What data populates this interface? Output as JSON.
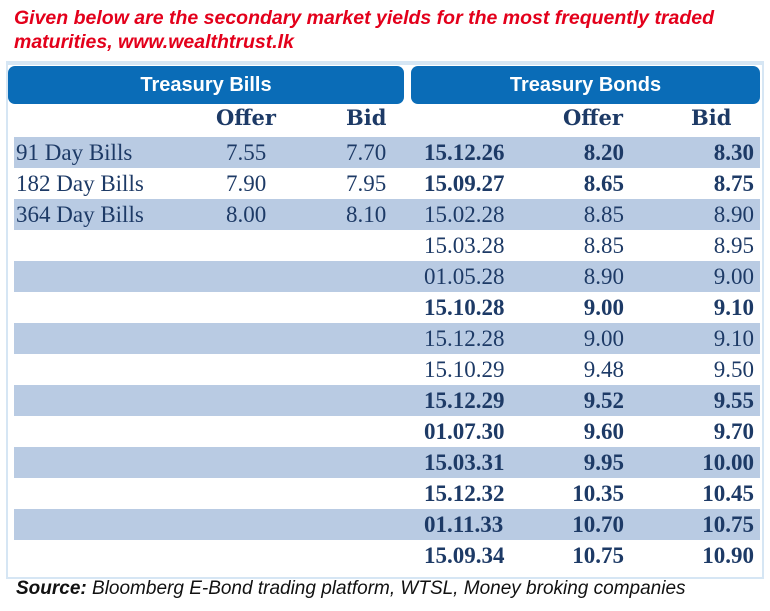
{
  "title": "Given below are the secondary market yields for the most frequently traded maturities, www.wealthtrust.lk",
  "bills": {
    "heading": "Treasury Bills",
    "columns": [
      "Offer",
      "Bid"
    ],
    "rows": [
      {
        "name": "91 Day Bills",
        "offer": "7.55",
        "bid": "7.70"
      },
      {
        "name": "182 Day Bills",
        "offer": "7.90",
        "bid": "7.95"
      },
      {
        "name": "364 Day Bills",
        "offer": "8.00",
        "bid": "8.10"
      }
    ]
  },
  "bonds": {
    "heading": "Treasury Bonds",
    "columns": [
      "Offer",
      "Bid"
    ],
    "rows": [
      {
        "maturity": "15.12.26",
        "offer": "8.20",
        "bid": "8.30",
        "bold": true
      },
      {
        "maturity": "15.09.27",
        "offer": "8.65",
        "bid": "8.75",
        "bold": true
      },
      {
        "maturity": "15.02.28",
        "offer": "8.85",
        "bid": "8.90",
        "bold": false
      },
      {
        "maturity": "15.03.28",
        "offer": "8.85",
        "bid": "8.95",
        "bold": false
      },
      {
        "maturity": "01.05.28",
        "offer": "8.90",
        "bid": "9.00",
        "bold": false
      },
      {
        "maturity": "15.10.28",
        "offer": "9.00",
        "bid": "9.10",
        "bold": true
      },
      {
        "maturity": "15.12.28",
        "offer": "9.00",
        "bid": "9.10",
        "bold": false
      },
      {
        "maturity": "15.10.29",
        "offer": "9.48",
        "bid": "9.50",
        "bold": false
      },
      {
        "maturity": "15.12.29",
        "offer": "9.52",
        "bid": "9.55",
        "bold": true
      },
      {
        "maturity": "01.07.30",
        "offer": "9.60",
        "bid": "9.70",
        "bold": true
      },
      {
        "maturity": "15.03.31",
        "offer": "9.95",
        "bid": "10.00",
        "bold": true
      },
      {
        "maturity": "15.12.32",
        "offer": "10.35",
        "bid": "10.45",
        "bold": true
      },
      {
        "maturity": "01.11.33",
        "offer": "10.70",
        "bid": "10.75",
        "bold": true
      },
      {
        "maturity": "15.09.34",
        "offer": "10.75",
        "bid": "10.90",
        "bold": true
      }
    ]
  },
  "source": {
    "label": "Source:",
    "text": " Bloomberg E-Bond trading platform, WTSL, Money broking companies"
  },
  "colors": {
    "title": "#e3001b",
    "header": "#0a6cb7",
    "stripe": "#b9cbe3",
    "text": "#1d3a66"
  }
}
